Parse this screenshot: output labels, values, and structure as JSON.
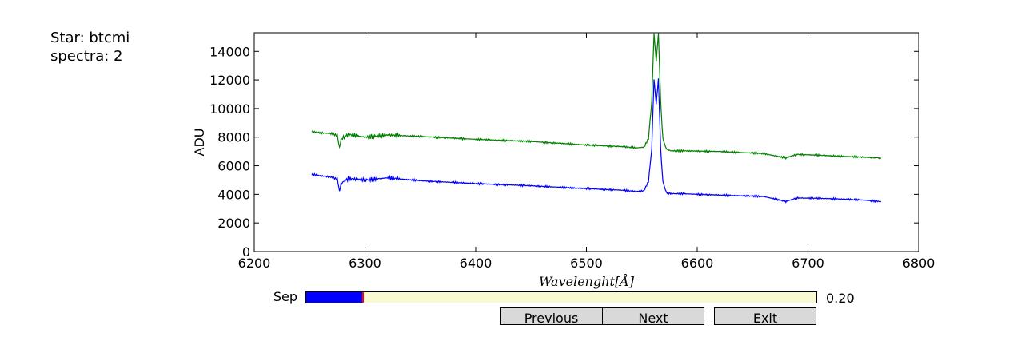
{
  "info": {
    "star_line": "Star: btcmi",
    "spectra_line": "spectra: 2"
  },
  "slider": {
    "label": "Sep",
    "value_text": "0.20",
    "fraction": 0.11
  },
  "buttons": {
    "previous": "Previous",
    "next": "Next",
    "exit": "Exit"
  },
  "chart_data": {
    "type": "line",
    "xlabel": "Wavelenght[Å]",
    "ylabel": "ADU",
    "xlim": [
      6200,
      6800
    ],
    "ylim": [
      0,
      15300
    ],
    "xticks": [
      6200,
      6300,
      6400,
      6500,
      6600,
      6700,
      6800
    ],
    "yticks": [
      0,
      2000,
      4000,
      6000,
      8000,
      10000,
      12000,
      14000
    ],
    "grid": false,
    "series": [
      {
        "color": "#008000",
        "x": [
          6252,
          6260,
          6270,
          6275,
          6277,
          6279,
          6285,
          6300,
          6320,
          6350,
          6400,
          6450,
          6500,
          6530,
          6545,
          6552,
          6556,
          6559,
          6561,
          6563,
          6565,
          6567,
          6569,
          6572,
          6576,
          6585,
          6620,
          6660,
          6680,
          6690,
          6720,
          6750,
          6766
        ],
        "y": [
          8400,
          8300,
          8250,
          8100,
          7300,
          7900,
          8200,
          8000,
          8150,
          8050,
          7850,
          7700,
          7450,
          7350,
          7250,
          7300,
          7900,
          10500,
          15300,
          13300,
          15300,
          10500,
          7900,
          7200,
          7050,
          7050,
          7000,
          6850,
          6550,
          6800,
          6700,
          6600,
          6550
        ]
      },
      {
        "color": "#0000ff",
        "x": [
          6252,
          6260,
          6270,
          6275,
          6277,
          6279,
          6285,
          6300,
          6320,
          6350,
          6400,
          6450,
          6500,
          6530,
          6545,
          6552,
          6556,
          6559,
          6561,
          6563,
          6565,
          6567,
          6569,
          6572,
          6576,
          6585,
          6620,
          6660,
          6680,
          6690,
          6720,
          6750,
          6766
        ],
        "y": [
          5400,
          5300,
          5200,
          5050,
          4250,
          4800,
          5100,
          5000,
          5150,
          4950,
          4750,
          4600,
          4400,
          4300,
          4200,
          4250,
          4900,
          7200,
          12100,
          10300,
          12100,
          7200,
          4900,
          4150,
          4050,
          4050,
          3950,
          3850,
          3500,
          3750,
          3700,
          3600,
          3500
        ]
      }
    ]
  }
}
